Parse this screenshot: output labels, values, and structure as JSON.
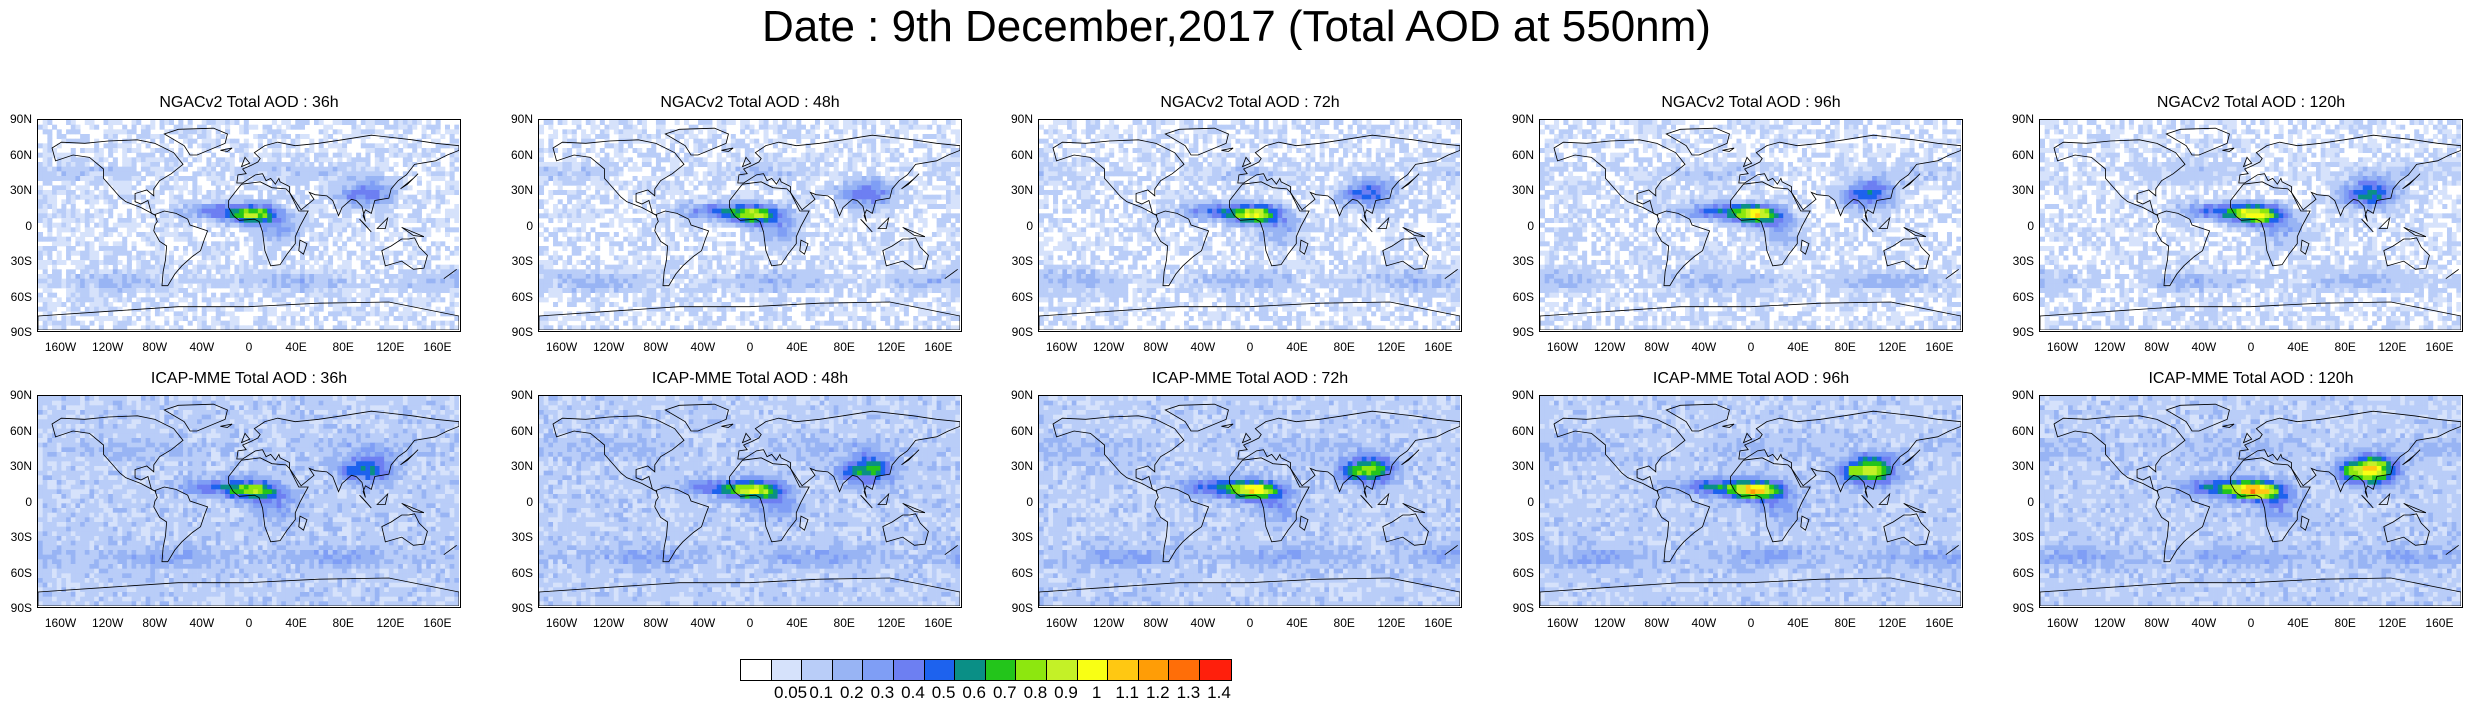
{
  "title": "Date : 9th December,2017 (Total AOD at 550nm)",
  "panels": [
    {
      "title": "NGACv2 Total AOD : 36h"
    },
    {
      "title": "NGACv2 Total AOD : 48h"
    },
    {
      "title": "NGACv2 Total AOD : 72h"
    },
    {
      "title": "NGACv2 Total AOD : 96h"
    },
    {
      "title": "NGACv2 Total AOD : 120h"
    },
    {
      "title": "ICAP-MME Total AOD : 36h"
    },
    {
      "title": "ICAP-MME Total AOD : 48h"
    },
    {
      "title": "ICAP-MME Total AOD : 72h"
    },
    {
      "title": "ICAP-MME Total AOD : 96h"
    },
    {
      "title": "ICAP-MME Total AOD : 120h"
    }
  ],
  "lat_ticks": [
    "90N",
    "60N",
    "30N",
    "0",
    "30S",
    "60S",
    "90S"
  ],
  "lon_ticks": [
    "160W",
    "120W",
    "80W",
    "40W",
    "0",
    "40E",
    "80E",
    "120E",
    "160E"
  ],
  "colorbar": {
    "labels": [
      "0.05",
      "0.1",
      "0.2",
      "0.3",
      "0.4",
      "0.5",
      "0.6",
      "0.7",
      "0.8",
      "0.9",
      "1",
      "1.1",
      "1.2",
      "1.3",
      "1.4"
    ],
    "colors": [
      "#ffffff",
      "#d6e2fb",
      "#b9cdf8",
      "#98b4f4",
      "#7f9ef5",
      "#6d7ff2",
      "#1d62ee",
      "#0a8f86",
      "#23c51b",
      "#8de70f",
      "#c4f127",
      "#f9ff14",
      "#ffc812",
      "#ff9d06",
      "#ff6e08",
      "#ff1f0c"
    ]
  }
}
